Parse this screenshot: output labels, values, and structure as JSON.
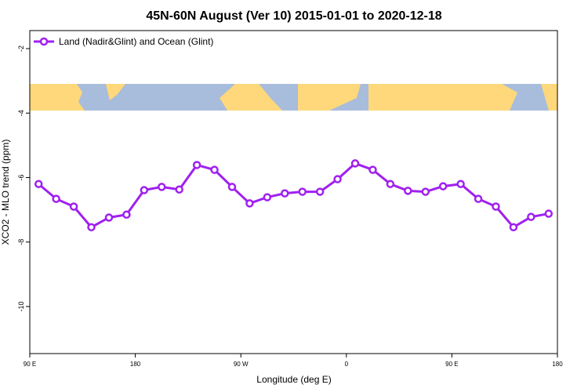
{
  "chart_data": {
    "type": "line",
    "title": "45N-60N August (Ver 10)   2015-01-01 to 2020-12-18",
    "xlabel": "Longitude (deg E)",
    "ylabel": "XCO2 - MLO trend (ppm)",
    "x": [
      97.5,
      112.5,
      127.5,
      142.5,
      157.5,
      172.5,
      187.5,
      202.5,
      217.5,
      232.5,
      247.5,
      262.5,
      277.5,
      292.5,
      307.5,
      322.5,
      337.5,
      352.5,
      367.5,
      382.5,
      397.5,
      412.5,
      427.5,
      442.5,
      457.5,
      472.5,
      487.5,
      502.5,
      517.5,
      532.5
    ],
    "series": [
      {
        "name": "Land (Nadir&Glint) and Ocean (Glint)",
        "color": "#a020f0",
        "values": [
          -6.2,
          -6.66,
          -6.9,
          -7.54,
          -7.24,
          -7.15,
          -6.39,
          -6.29,
          -6.37,
          -5.61,
          -5.76,
          -6.29,
          -6.8,
          -6.61,
          -6.49,
          -6.44,
          -6.44,
          -6.05,
          -5.56,
          -5.76,
          -6.2,
          -6.41,
          -6.44,
          -6.27,
          -6.2,
          -6.66,
          -6.9,
          -7.54,
          -7.22,
          -7.12
        ]
      }
    ],
    "xlim": [
      90,
      540
    ],
    "xticks": [
      {
        "value": 90,
        "label": "90 E"
      },
      180,
      {
        "value": 270,
        "label": "90 W"
      },
      {
        "value": 360,
        "label": "0"
      },
      {
        "value": 450,
        "label": "90 E"
      },
      {
        "value": 540,
        "label": "180"
      }
    ],
    "ylim": [
      -11.46,
      -1.44
    ],
    "yticks": [
      -2,
      -4,
      -6,
      -8,
      -10
    ],
    "legend": "top-left"
  }
}
